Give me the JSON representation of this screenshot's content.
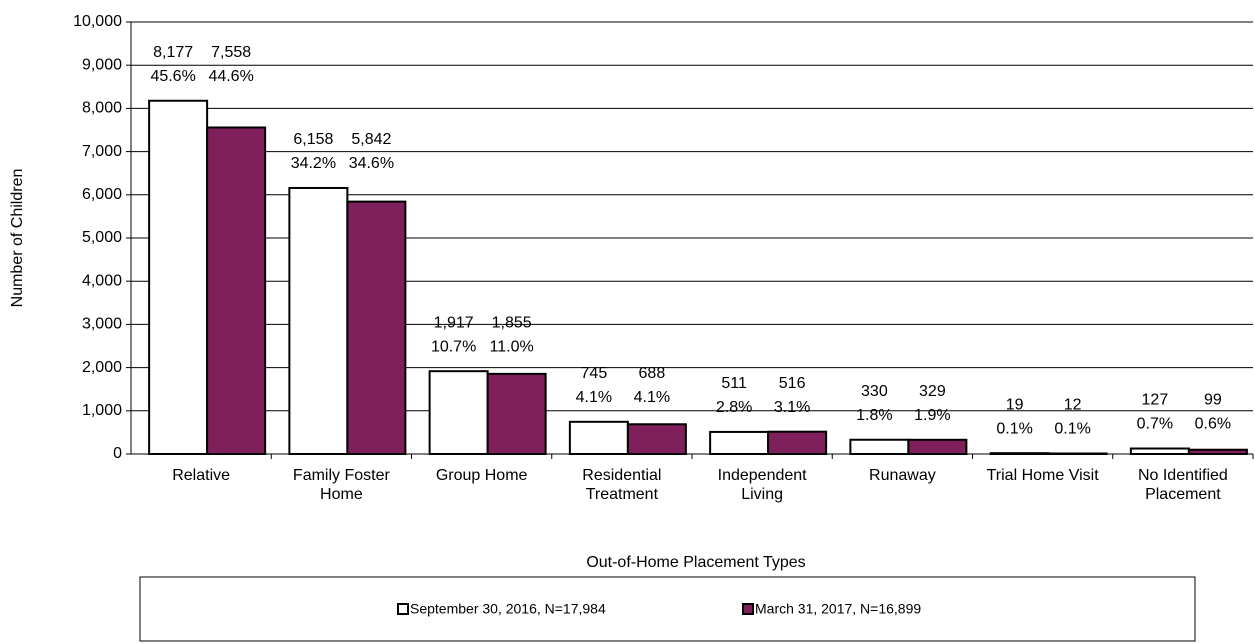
{
  "chart_data": {
    "type": "bar",
    "x_label": "Out-of-Home Placement Types",
    "y_label": "Number of Children",
    "categories": [
      "Relative",
      "Family Foster Home",
      "Group Home",
      "Residential Treatment",
      "Independent Living",
      "Runaway",
      "Trial Home Visit",
      "No Identified Placement"
    ],
    "series": [
      {
        "name": "September 30, 2016, N=17,984",
        "color": "#ffffff",
        "values": [
          8177,
          6158,
          1917,
          745,
          511,
          330,
          19,
          127
        ],
        "value_labels": [
          "8,177",
          "6,158",
          "1,917",
          "745",
          "511",
          "330",
          "19",
          "127"
        ],
        "percent_labels": [
          "45.6%",
          "34.2%",
          "10.7%",
          "4.1%",
          "2.8%",
          "1.8%",
          "0.1%",
          "0.7%"
        ]
      },
      {
        "name": "March 31, 2017, N=16,899",
        "color": "#7f1f5c",
        "values": [
          7558,
          5842,
          1855,
          688,
          516,
          329,
          12,
          99
        ],
        "value_labels": [
          "7,558",
          "5,842",
          "1,855",
          "688",
          "516",
          "329",
          "12",
          "99"
        ],
        "percent_labels": [
          "44.6%",
          "34.6%",
          "11.0%",
          "4.1%",
          "3.1%",
          "1.9%",
          "0.1%",
          "0.6%"
        ]
      }
    ],
    "ylim": [
      0,
      10000
    ],
    "yticks": [
      0,
      {
        "value": 1000,
        "label": "1,000"
      },
      {
        "value": 2000,
        "label": "2,000"
      },
      {
        "value": 3000,
        "label": "3,000"
      },
      {
        "value": 4000,
        "label": "4,000"
      },
      {
        "value": 5000,
        "label": "5,000"
      },
      {
        "value": 6000,
        "label": "6,000"
      },
      {
        "value": 7000,
        "label": "7,000"
      },
      {
        "value": 8000,
        "label": "8,000"
      },
      {
        "value": 9000,
        "label": "9,000"
      },
      {
        "value": 10000,
        "label": "10,000"
      }
    ],
    "grid": true
  }
}
